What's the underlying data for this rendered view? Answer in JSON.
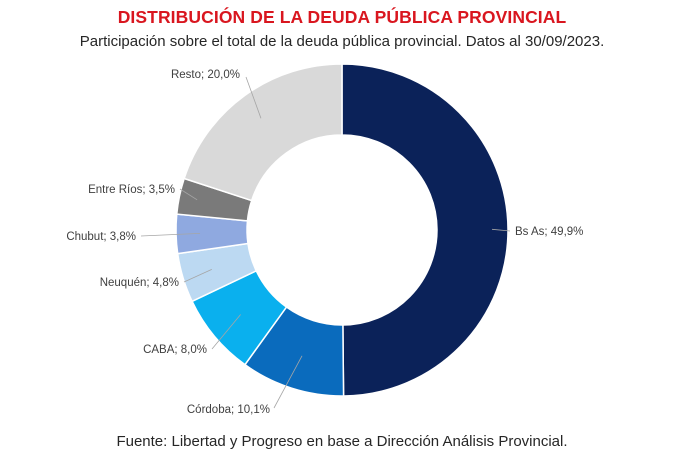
{
  "header": {
    "title": "DISTRIBUCIÓN DE LA DEUDA PÚBLICA PROVINCIAL",
    "subtitle": "Participación sobre el total de la deuda pública provincial. Datos al 30/09/2023."
  },
  "footer": {
    "source": "Fuente: Libertad y Progreso en base a Dirección Análisis Provincial."
  },
  "chart_data": {
    "type": "pie",
    "subtype": "donut",
    "title": "DISTRIBUCIÓN DE LA DEUDA PÚBLICA PROVINCIAL",
    "subtitle": "Participación sobre el total de la deuda pública provincial. Datos al 30/09/2023.",
    "unit": "%",
    "legend": "none",
    "slices": [
      {
        "label": "Bs As",
        "value": 49.9,
        "display": "Bs As; 49,9%",
        "color": "#0b2259"
      },
      {
        "label": "Córdoba",
        "value": 10.1,
        "display": "Córdoba; 10,1%",
        "color": "#0a6bbd"
      },
      {
        "label": "CABA",
        "value": 8.0,
        "display": "CABA; 8,0%",
        "color": "#0ab0ee"
      },
      {
        "label": "Neuquén",
        "value": 4.8,
        "display": "Neuquén; 4,8%",
        "color": "#bcd9f2"
      },
      {
        "label": "Chubut",
        "value": 3.8,
        "display": "Chubut; 3,8%",
        "color": "#8fa9e0"
      },
      {
        "label": "Entre Ríos",
        "value": 3.5,
        "display": "Entre Ríos; 3,5%",
        "color": "#7a7a7a"
      },
      {
        "label": "Resto",
        "value": 20.0,
        "display": "Resto; 20,0%",
        "color": "#d9d9d9"
      }
    ]
  }
}
